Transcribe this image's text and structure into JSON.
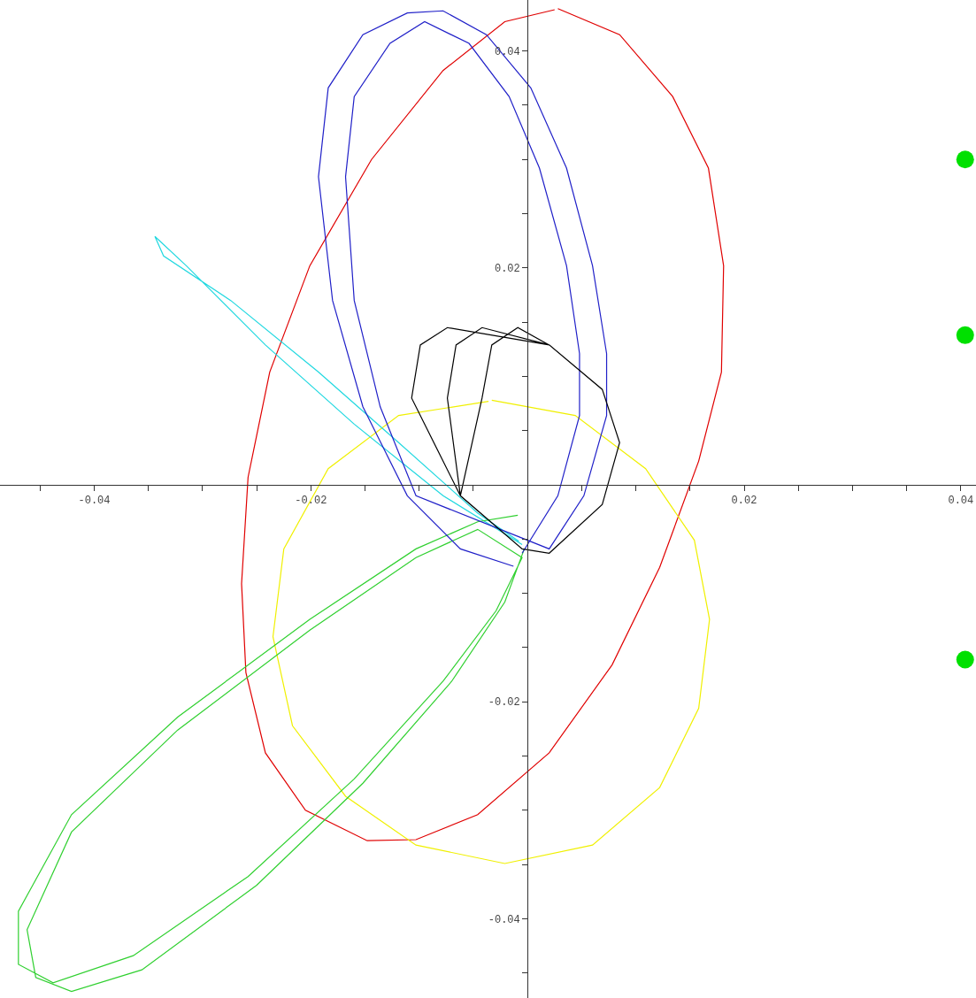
{
  "chart_data": {
    "type": "line",
    "xlim": [
      -0.0487,
      0.0414
    ],
    "ylim": [
      -0.0473,
      0.0447
    ],
    "xticks": [
      {
        "value": -0.045,
        "label": null
      },
      -0.04,
      {
        "value": -0.035,
        "label": null
      },
      {
        "value": -0.03,
        "label": null
      },
      {
        "value": -0.025,
        "label": null
      },
      -0.02,
      {
        "value": -0.015,
        "label": null
      },
      {
        "value": -0.01,
        "label": null
      },
      {
        "value": -0.005,
        "label": null
      },
      {
        "value": 0.005,
        "label": null
      },
      {
        "value": 0.01,
        "label": null
      },
      {
        "value": 0.015,
        "label": null
      },
      0.02,
      {
        "value": 0.025,
        "label": null
      },
      {
        "value": 0.03,
        "label": null
      },
      {
        "value": 0.035,
        "label": null
      },
      0.04
    ],
    "yticks": [
      {
        "value": -0.045,
        "label": null
      },
      -0.04,
      {
        "value": -0.035,
        "label": null
      },
      {
        "value": -0.03,
        "label": null
      },
      {
        "value": -0.025,
        "label": null
      },
      -0.02,
      {
        "value": -0.015,
        "label": null
      },
      {
        "value": -0.01,
        "label": null
      },
      {
        "value": -0.005,
        "label": null
      },
      {
        "value": 0.005,
        "label": null
      },
      {
        "value": 0.01,
        "label": null
      },
      {
        "value": 0.015,
        "label": null
      },
      0.02,
      {
        "value": 0.025,
        "label": null
      },
      {
        "value": 0.03,
        "label": null
      },
      {
        "value": 0.035,
        "label": null
      },
      0.04
    ],
    "series": [
      {
        "color": "#e00000",
        "x": [
          0.0028,
          0.0085,
          0.0134,
          0.0167,
          0.0181,
          0.0179,
          0.0158,
          0.0122,
          0.0078,
          0.002,
          -0.0046,
          -0.0103,
          -0.0148,
          -0.0205,
          -0.0242,
          -0.026,
          -0.0264,
          -0.0258,
          -0.0238,
          -0.0201,
          -0.0144,
          -0.0078,
          -0.0021,
          0.0025
        ],
        "values": [
          0.0439,
          0.0415,
          0.0358,
          0.0292,
          0.0202,
          0.0104,
          0.0022,
          -0.0076,
          -0.0166,
          -0.0247,
          -0.0304,
          -0.0327,
          -0.0328,
          -0.03,
          -0.0247,
          -0.0173,
          -0.0091,
          0.0007,
          0.0104,
          0.0202,
          0.03,
          0.0382,
          0.0427,
          0.0438
        ]
      },
      {
        "color": "#f0f000",
        "x": [
          -0.0033,
          0.0044,
          0.0109,
          0.0154,
          0.0168,
          0.0158,
          0.0122,
          0.006,
          -0.0021,
          -0.0103,
          -0.0168,
          -0.0217,
          -0.0235,
          -0.0225,
          -0.0184,
          -0.0119,
          -0.0036
        ],
        "values": [
          0.0078,
          0.0064,
          0.0015,
          -0.0051,
          -0.0124,
          -0.0206,
          -0.0279,
          -0.0332,
          -0.0349,
          -0.0332,
          -0.0287,
          -0.0222,
          -0.014,
          -0.0059,
          0.0015,
          0.0064,
          0.0077
        ]
      },
      {
        "color": "#20d8e0",
        "x": [
          -0.0005,
          -0.0078,
          -0.016,
          -0.0242,
          -0.0315,
          -0.0344,
          -0.0336,
          -0.0274,
          -0.0193,
          -0.0119,
          -0.0046,
          -0.0008
        ],
        "values": [
          -0.0055,
          -0.001,
          0.0056,
          0.0129,
          0.0202,
          0.0229,
          0.0211,
          0.017,
          0.0104,
          0.0039,
          -0.0026,
          -0.0052
        ]
      },
      {
        "color": "#30d030",
        "x": [
          -0.0009,
          -0.0046,
          -0.0103,
          -0.0201,
          -0.0323,
          -0.0421,
          -0.047,
          -0.047,
          -0.0438,
          -0.0364,
          -0.0258,
          -0.016,
          -0.0078,
          -0.0029,
          -0.0005,
          -0.0046,
          -0.0103,
          -0.0201,
          -0.0323,
          -0.0421,
          -0.0462,
          -0.0454,
          -0.0421,
          -0.0356,
          -0.025,
          -0.0152,
          -0.007,
          -0.0021,
          -0.0003
        ],
        "values": [
          -0.0028,
          -0.0034,
          -0.0059,
          -0.0124,
          -0.0214,
          -0.0304,
          -0.0393,
          -0.0442,
          -0.0459,
          -0.0434,
          -0.0361,
          -0.0271,
          -0.0181,
          -0.0116,
          -0.0067,
          -0.0041,
          -0.0067,
          -0.0134,
          -0.0226,
          -0.032,
          -0.041,
          -0.0454,
          -0.0467,
          -0.0447,
          -0.0369,
          -0.0275,
          -0.0181,
          -0.0108,
          -0.0059
        ]
      },
      {
        "color": "#2020c8",
        "x": [
          -0.0013,
          -0.0062,
          -0.0111,
          -0.0152,
          -0.018,
          -0.0193,
          -0.0184,
          -0.0152,
          -0.0111,
          -0.0078,
          -0.0038,
          0.0003,
          0.0036,
          0.006,
          0.0073,
          0.0073,
          0.0052,
          0.002,
          -0.0103,
          -0.0136,
          -0.016,
          -0.0168,
          -0.016,
          -0.0127,
          -0.0095,
          -0.0054,
          -0.0017,
          0.0011,
          0.0036,
          0.0048,
          0.0048,
          0.0028,
          -0.0005
        ],
        "values": [
          -0.0075,
          -0.0059,
          -0.001,
          0.0072,
          0.017,
          0.0284,
          0.0366,
          0.0415,
          0.0435,
          0.0437,
          0.0415,
          0.0366,
          0.0292,
          0.0202,
          0.0121,
          0.0064,
          -0.001,
          -0.0059,
          -0.001,
          0.0072,
          0.017,
          0.0284,
          0.0358,
          0.0407,
          0.0427,
          0.0407,
          0.0358,
          0.0292,
          0.0202,
          0.0121,
          0.0064,
          -0.001,
          -0.0063
        ]
      },
      {
        "color": "#000000",
        "x": [
          -0.0005,
          -0.0062,
          -0.0107,
          -0.0099,
          -0.0074,
          0.002,
          0.0069,
          0.0085,
          0.0069,
          0.002,
          -0.0005,
          -0.0062,
          -0.0074,
          -0.0066,
          -0.0042,
          0.002,
          0.0069,
          0.0085,
          0.0069,
          0.002,
          -0.0005,
          -0.0062,
          -0.0042,
          -0.0033,
          -0.0009,
          0.002,
          0.0069,
          0.0085,
          0.0069,
          0.002
        ],
        "values": [
          -0.0059,
          -0.001,
          0.008,
          0.0129,
          0.0145,
          0.0129,
          0.0088,
          0.0039,
          -0.0018,
          -0.0063,
          -0.0059,
          -0.001,
          0.008,
          0.0129,
          0.0145,
          0.0129,
          0.0088,
          0.0039,
          -0.0018,
          -0.0063,
          -0.0059,
          -0.001,
          0.008,
          0.0129,
          0.0145,
          0.0129,
          0.0088,
          0.0039,
          -0.0018,
          -0.0063
        ]
      },
      {
        "type": "scatter",
        "marker": "circle",
        "color": "#00e000",
        "x": [
          0.0404,
          0.0404,
          0.0404
        ],
        "values": [
          0.03,
          0.0138,
          -0.0161
        ]
      }
    ]
  }
}
